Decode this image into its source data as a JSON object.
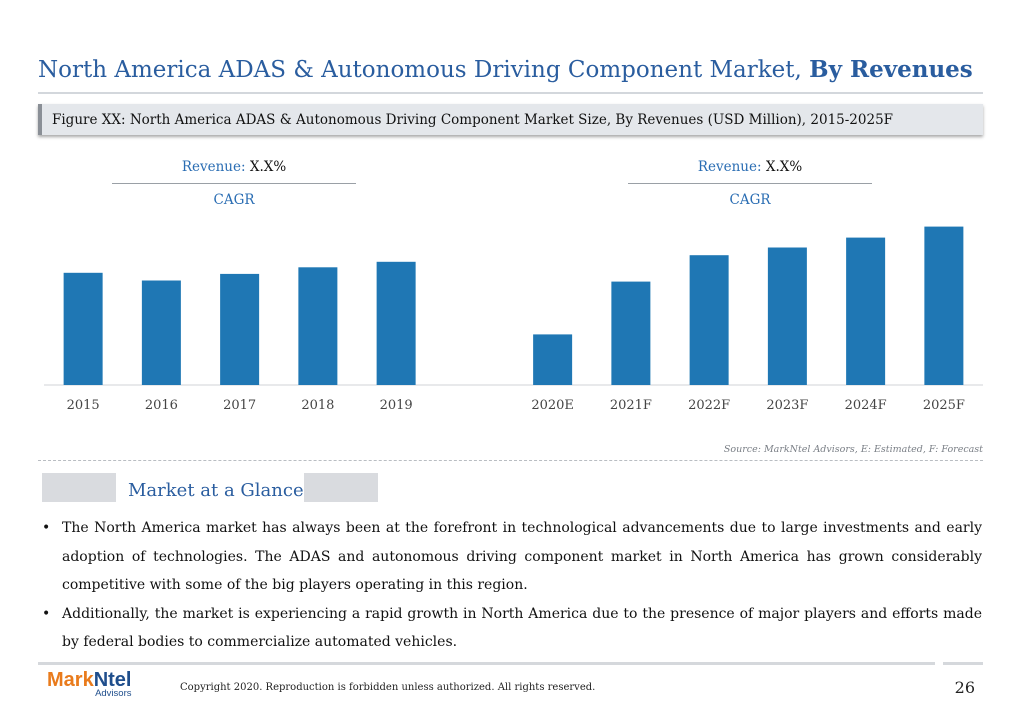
{
  "header": {
    "title_main": "North America ADAS & Autonomous Driving Component Market, ",
    "title_bold": "By Revenues",
    "figure_caption": "Figure XX: North America ADAS & Autonomous Driving Component Market Size, By Revenues (USD Million), 2015-2025F"
  },
  "cagr": [
    {
      "prefix": "Revenue: ",
      "value": "X.X%",
      "label": "CAGR"
    },
    {
      "prefix": "Revenue: ",
      "value": "X.X%",
      "label": "CAGR"
    }
  ],
  "chart_data": {
    "type": "bar",
    "categories": [
      "2015",
      "2016",
      "2017",
      "2018",
      "2019",
      "",
      "2020E",
      "2021F",
      "2022F",
      "2023F",
      "2024F",
      "2025F"
    ],
    "values": [
      102,
      95,
      101,
      107,
      112,
      null,
      46,
      94,
      118,
      125,
      134,
      144
    ],
    "ylim": [
      0,
      150
    ],
    "bar_color": "#1f77b4",
    "grid": false,
    "legend": "none"
  },
  "source": "Source: MarkNtel Advisors, E: Estimated, F: Forecast",
  "glance": {
    "title": "Market at a Glance",
    "bullets": [
      "The North America market has always been at the forefront in technological advancements due to large investments and early adoption of technologies. The ADAS and autonomous driving component market in North America has grown considerably competitive with some of the big players operating in this region.",
      "Additionally, the market is experiencing a rapid growth in North America due to the presence of major players and efforts made by federal bodies to commercialize automated vehicles."
    ]
  },
  "footer": {
    "logo_mark_1": "Mark",
    "logo_mark_2": "Ntel",
    "logo_sub": "Advisors",
    "copyright": "Copyright 2020. Reproduction is forbidden unless authorized. All rights reserved.",
    "page_number": "26"
  },
  "colors": {
    "title": "#2a5d9f",
    "bar": "#1f77b4",
    "logo_orange": "#e97b1c",
    "logo_blue": "#1f4e8c"
  }
}
